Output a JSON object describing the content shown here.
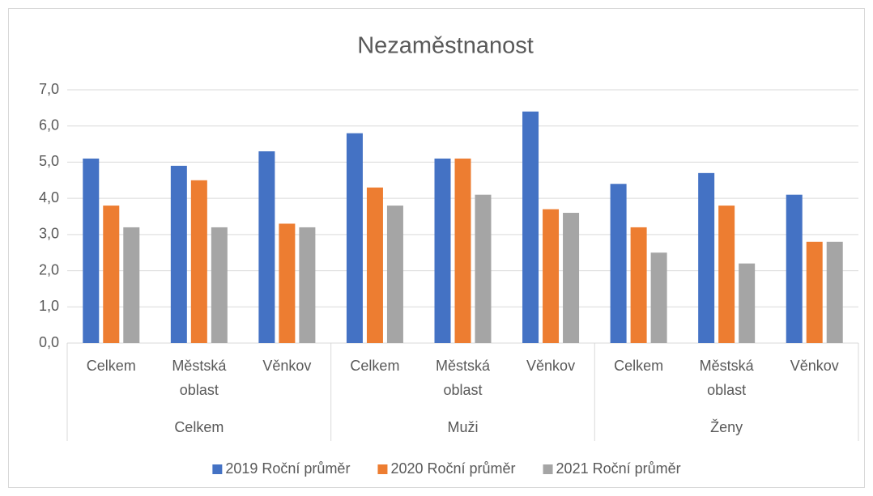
{
  "chart_data": {
    "type": "bar",
    "title": "Nezaměstnanost",
    "categories": [
      "Celkem",
      "Městská oblast",
      "Věnkov",
      "Celkem",
      "Městská oblast",
      "Věnkov",
      "Celkem",
      "Městská oblast",
      "Věnkov"
    ],
    "groups": [
      "Celkem",
      "Muži",
      "Ženy"
    ],
    "series": [
      {
        "name": "2019 Roční průměr",
        "color": "#4472c4",
        "values": [
          5.1,
          4.9,
          5.3,
          5.8,
          5.1,
          6.4,
          4.4,
          4.7,
          4.1
        ]
      },
      {
        "name": "2020 Roční průměr",
        "color": "#ed7d31",
        "values": [
          3.8,
          4.5,
          3.3,
          4.3,
          5.1,
          3.7,
          3.2,
          3.8,
          2.8
        ]
      },
      {
        "name": "2021 Roční průměr",
        "color": "#a5a5a5",
        "values": [
          3.2,
          3.2,
          3.2,
          3.8,
          4.1,
          3.6,
          2.5,
          2.2,
          2.8
        ]
      }
    ],
    "ylim": [
      0,
      7
    ],
    "yticks": [
      {
        "value": 0,
        "label": "0,0"
      },
      {
        "value": 1,
        "label": "1,0"
      },
      {
        "value": 2,
        "label": "2,0"
      },
      {
        "value": 3,
        "label": "3,0"
      },
      {
        "value": 4,
        "label": "4,0"
      },
      {
        "value": 5,
        "label": "5,0"
      },
      {
        "value": 6,
        "label": "6,0"
      },
      {
        "value": 7,
        "label": "7,0"
      }
    ],
    "grid": true,
    "legend": "bottom"
  }
}
